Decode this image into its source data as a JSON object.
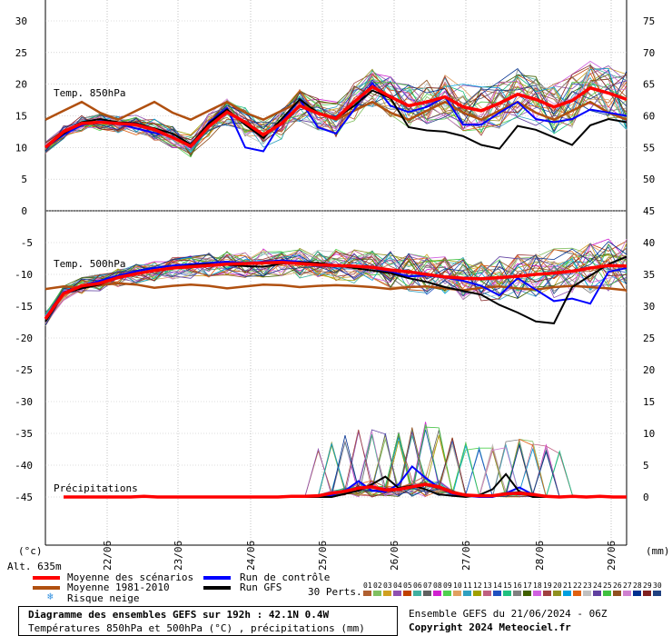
{
  "chart_data": {
    "type": "line",
    "title": "Diagramme des ensembles GEFS sur 192h : 42.1N 0.4W",
    "subtitle": "Températures 850hPa et 500hPa (°C) , précipitations (mm)",
    "altitude": "Alt. 635m",
    "unit_left": "(°c)",
    "unit_right": "(mm)",
    "x_labels": [
      "22/06",
      "23/06",
      "24/06",
      "25/06",
      "26/06",
      "27/06",
      "28/06",
      "29/06"
    ],
    "t850": {
      "label": "Temp. 850hPa",
      "y_ticks_left": [
        "30",
        "25",
        "20",
        "15",
        "10",
        "5",
        "0"
      ],
      "y_ticks_right": [
        "75",
        "70",
        "65",
        "60",
        "55",
        "50",
        "45"
      ],
      "ylim": [
        0,
        30
      ],
      "mean": [
        10,
        12.5,
        13.8,
        14,
        13.8,
        13.6,
        12.8,
        11.6,
        10.2,
        13.3,
        15.6,
        14,
        12,
        13.8,
        16.6,
        15.4,
        14.6,
        17.2,
        19.6,
        18,
        16.6,
        17.2,
        18,
        16.4,
        15.8,
        17,
        18.4,
        17.6,
        16.4,
        17.4,
        19.4,
        18.6,
        17.6
      ],
      "normal": [
        14.4,
        15.8,
        17.2,
        15.5,
        14.4,
        15.8,
        17.2,
        15.5,
        14.4,
        15.8,
        17.2,
        15.5,
        14.4,
        15.8,
        17.2,
        15.5,
        14.4,
        15.8,
        17.2,
        15.5,
        14.4,
        15.8,
        17.2,
        15.5,
        14.4,
        15.8,
        17.2,
        15.5,
        14.4,
        15.8,
        17.2,
        15.5,
        14.4
      ],
      "control": [
        10,
        12,
        13.5,
        14.2,
        13.8,
        13,
        12.3,
        11.8,
        10,
        14,
        16.2,
        10,
        9.4,
        14,
        17.6,
        13.2,
        12.2,
        16,
        20.2,
        16.6,
        15.6,
        16.4,
        18,
        13.6,
        13.6,
        15.5,
        17.2,
        14.5,
        14,
        14.5,
        16,
        15.5,
        15
      ],
      "gfs": [
        10,
        12.2,
        14,
        14.5,
        14,
        13.8,
        13,
        12.2,
        10.5,
        13.8,
        16,
        13.6,
        11.5,
        14.5,
        17.6,
        15.5,
        14.6,
        16.6,
        19,
        17.8,
        13.2,
        12.7,
        12.5,
        11.8,
        10.4,
        9.8,
        13.4,
        12.8,
        11.6,
        10.4,
        13.5,
        14.5,
        14
      ]
    },
    "t500": {
      "label": "Temp. 500hPa",
      "y_ticks_left": [
        "-5",
        "-10",
        "-15",
        "-20",
        "-25",
        "-30",
        "-35",
        "-40",
        "-45"
      ],
      "y_ticks_right": [
        "40",
        "35",
        "30",
        "25",
        "20",
        "15",
        "10",
        "5",
        "0"
      ],
      "ylim": [
        -47,
        -2
      ],
      "mean": [
        -17,
        -13,
        -11.8,
        -11.4,
        -10.5,
        -9.9,
        -9.4,
        -9,
        -8.8,
        -8.6,
        -8.4,
        -8.3,
        -8.2,
        -8.1,
        -8.3,
        -8.5,
        -8.6,
        -8.7,
        -8.9,
        -9.3,
        -9.6,
        -10,
        -10.4,
        -10.6,
        -10.7,
        -10.5,
        -10.3,
        -10,
        -9.8,
        -9.5,
        -9,
        -8.6,
        -8.7
      ],
      "normal": [
        -12.3,
        -11.9,
        -12.1,
        -11.7,
        -11.4,
        -11.6,
        -12.1,
        -11.8,
        -11.6,
        -11.8,
        -12.2,
        -11.9,
        -11.6,
        -11.7,
        -12,
        -11.8,
        -11.7,
        -11.8,
        -12,
        -12.3,
        -12,
        -11.9,
        -12.2,
        -12.5,
        -12.1,
        -11.9,
        -12.2,
        -12.4,
        -12,
        -11.8,
        -12,
        -12.2,
        -12.5
      ],
      "control": [
        -17,
        -12.8,
        -11.8,
        -11,
        -10.2,
        -9.5,
        -9,
        -8.6,
        -8.4,
        -8.2,
        -8,
        -8.2,
        -8,
        -7.8,
        -8,
        -8.3,
        -8.5,
        -8.7,
        -9,
        -9.6,
        -10.3,
        -10.2,
        -10.5,
        -11,
        -11.8,
        -13.3,
        -10.6,
        -12.4,
        -14.2,
        -13.8,
        -14.6,
        -9.6,
        -9
      ],
      "gfs": [
        -17.4,
        -13,
        -12.2,
        -11.6,
        -10.4,
        -9.8,
        -9.4,
        -9,
        -8.6,
        -8.4,
        -8.5,
        -8.7,
        -8.8,
        -8.3,
        -8.1,
        -8.2,
        -8.6,
        -9,
        -9.4,
        -9.8,
        -10.6,
        -11.2,
        -12,
        -12.6,
        -13.2,
        -14.8,
        -16,
        -17.4,
        -17.7,
        -12,
        -10.2,
        -8.4,
        -7.2
      ]
    },
    "precip": {
      "label": "Précipitations",
      "ylim_mm": [
        0,
        45
      ],
      "mean": [
        0,
        0,
        0,
        0,
        0,
        0,
        0.1,
        0,
        0,
        0,
        0,
        0,
        0,
        0,
        0,
        0,
        0,
        0.1,
        0.1,
        0.2,
        0.6,
        0.9,
        1.4,
        1.6,
        1.1,
        1.2,
        1.6,
        2.0,
        1.6,
        0.7,
        0.3,
        0.2,
        0.2,
        0.5,
        0.6,
        0.4,
        0.1,
        0,
        0.1,
        0,
        0.1,
        0,
        0
      ],
      "control": [
        0,
        0,
        0,
        0,
        0,
        0,
        0,
        0,
        0,
        0,
        0,
        0,
        0,
        0,
        0,
        0,
        0,
        0,
        0,
        0,
        0.3,
        1,
        2.5,
        1,
        0.8,
        2,
        4.8,
        3,
        1.5,
        0.5,
        0.2,
        0,
        0,
        0.6,
        1.5,
        0.4,
        0,
        0,
        0,
        0,
        0,
        0,
        0
      ],
      "gfs": [
        0,
        0,
        0,
        0,
        0,
        0,
        0,
        0,
        0,
        0,
        0,
        0,
        0,
        0,
        0,
        0,
        0,
        0,
        0,
        0,
        0,
        0.5,
        1,
        2,
        3.2,
        1.4,
        1.8,
        1.2,
        0.4,
        0.2,
        0,
        0.3,
        1.2,
        3.6,
        0.8,
        0,
        0,
        0,
        0,
        0,
        0,
        0,
        0
      ]
    },
    "legend": {
      "mean": "Moyenne des scénarios",
      "normal": "Moyenne 1981-2010",
      "snow": "Risque neige",
      "control": "Run de contrôle",
      "gfs": "Run GFS",
      "perts": "30 Perts."
    },
    "colors": {
      "mean": "#ff0000",
      "normal": "#b05010",
      "control": "#0000ff",
      "gfs": "#000000",
      "perts": [
        "#b06030",
        "#80c060",
        "#d0a020",
        "#9050b0",
        "#c04000",
        "#40b0a0",
        "#606060",
        "#d020d0",
        "#50d050",
        "#e0a060",
        "#30a0c0",
        "#a0a000",
        "#c06080",
        "#2050c0",
        "#20c080",
        "#808080",
        "#406000",
        "#d060e0",
        "#a04040",
        "#909020",
        "#00a0e0",
        "#e06010",
        "#c0c0c0",
        "#6040a0",
        "#40c040",
        "#905020",
        "#d080d0",
        "#003090",
        "#802020",
        "#204080"
      ]
    },
    "pert_numbers": [
      "01",
      "02",
      "03",
      "04",
      "05",
      "06",
      "07",
      "08",
      "09",
      "10",
      "11",
      "12",
      "13",
      "14",
      "15",
      "16",
      "17",
      "18",
      "19",
      "20",
      "21",
      "22",
      "23",
      "24",
      "25",
      "26",
      "27",
      "28",
      "29",
      "30"
    ],
    "run_info": "Ensemble GEFS du 21/06/2024 - 06Z",
    "copyright": "Copyright 2024 Meteociel.fr"
  }
}
